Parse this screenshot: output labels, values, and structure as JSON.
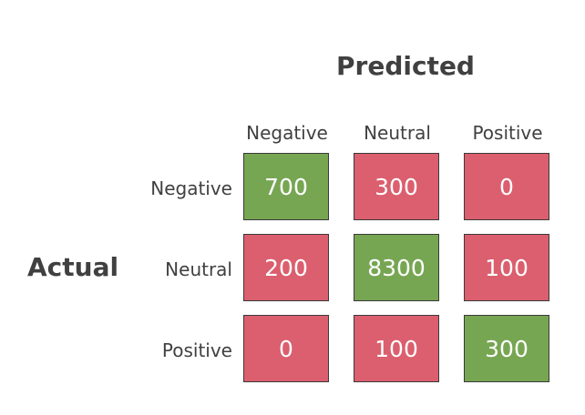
{
  "chart_data": {
    "type": "heatmap",
    "title": "",
    "xlabel": "Predicted",
    "ylabel": "Actual",
    "x_categories": [
      "Negative",
      "Neutral",
      "Positive"
    ],
    "y_categories": [
      "Negative",
      "Neutral",
      "Positive"
    ],
    "values": [
      [
        700,
        300,
        0
      ],
      [
        200,
        8300,
        100
      ],
      [
        0,
        100,
        300
      ]
    ],
    "colors": {
      "correct": "#77a653",
      "incorrect": "#db5f6e"
    }
  }
}
